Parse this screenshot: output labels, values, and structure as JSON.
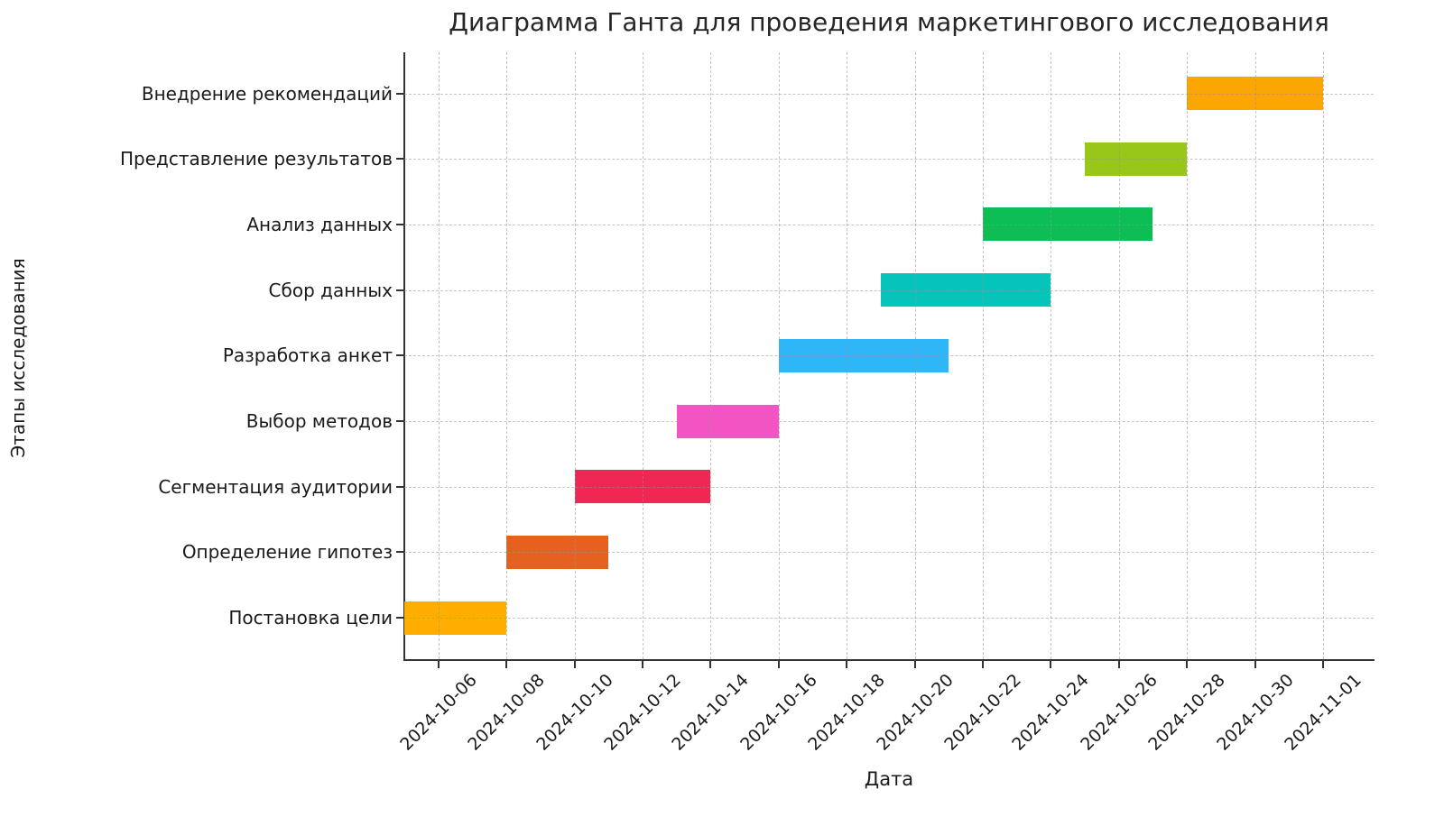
{
  "chart_data": {
    "type": "bar",
    "variant": "gantt",
    "title": "Диаграмма Ганта для проведения маркетингового исследования",
    "xlabel": "Дата",
    "ylabel": "Этапы исследования",
    "xlim": [
      "2024-10-05",
      "2024-11-02"
    ],
    "x_ticks": [
      "2024-10-06",
      "2024-10-08",
      "2024-10-10",
      "2024-10-12",
      "2024-10-14",
      "2024-10-16",
      "2024-10-18",
      "2024-10-20",
      "2024-10-22",
      "2024-10-24",
      "2024-10-26",
      "2024-10-28",
      "2024-10-30",
      "2024-11-01"
    ],
    "grid": true,
    "grid_style": "dashed",
    "legend": "none",
    "tasks_bottom_to_top": [
      {
        "label": "Постановка цели",
        "start": "2024-10-05",
        "end": "2024-10-08",
        "color": "#FFAE00"
      },
      {
        "label": "Определение гипотез",
        "start": "2024-10-08",
        "end": "2024-10-11",
        "color": "#E6601F"
      },
      {
        "label": "Сегментация аудитории",
        "start": "2024-10-10",
        "end": "2024-10-14",
        "color": "#F02752"
      },
      {
        "label": "Выбор методов",
        "start": "2024-10-13",
        "end": "2024-10-16",
        "color": "#F254C4"
      },
      {
        "label": "Разработка анкет",
        "start": "2024-10-16",
        "end": "2024-10-21",
        "color": "#2FB6F6"
      },
      {
        "label": "Сбор данных",
        "start": "2024-10-19",
        "end": "2024-10-24",
        "color": "#05C5BB"
      },
      {
        "label": "Анализ данных",
        "start": "2024-10-22",
        "end": "2024-10-27",
        "color": "#0CBE53"
      },
      {
        "label": "Представление результатов",
        "start": "2024-10-25",
        "end": "2024-10-28",
        "color": "#99C719"
      },
      {
        "label": "Внедрение рекомендаций",
        "start": "2024-10-28",
        "end": "2024-11-01",
        "color": "#FBA603"
      }
    ],
    "colors": {
      "background": "#ffffff",
      "grid": "#c9c9c9",
      "spine": "#333333",
      "text": "#1a1a1a",
      "title_text": "#262626"
    }
  }
}
